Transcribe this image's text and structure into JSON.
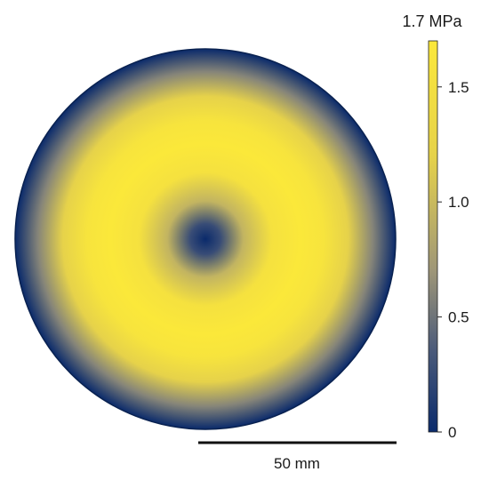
{
  "figure": {
    "quantity_unit_label": "1.7 MPa",
    "colormap": {
      "name": "cividis-like",
      "stops": [
        {
          "value": 0.0,
          "color": "#0a2a6b"
        },
        {
          "value": 0.35,
          "color": "#4a5a7a"
        },
        {
          "value": 0.7,
          "color": "#9e9678"
        },
        {
          "value": 1.2,
          "color": "#e6d24a"
        },
        {
          "value": 1.7,
          "color": "#fbe83a"
        }
      ]
    },
    "colorbar": {
      "min": 0,
      "max": 1.7,
      "ticks": [
        {
          "value": 0,
          "label": "0"
        },
        {
          "value": 0.5,
          "label": "0.5"
        },
        {
          "value": 1.0,
          "label": "1.0"
        },
        {
          "value": 1.5,
          "label": "1.5"
        }
      ]
    },
    "radial_profile": {
      "description_values": [
        {
          "r": 0.0,
          "v": 0.0
        },
        {
          "r": 0.08,
          "v": 0.25
        },
        {
          "r": 0.2,
          "v": 0.95
        },
        {
          "r": 0.35,
          "v": 1.55
        },
        {
          "r": 0.5,
          "v": 1.7
        },
        {
          "r": 0.62,
          "v": 1.6
        },
        {
          "r": 0.75,
          "v": 1.2
        },
        {
          "r": 0.88,
          "v": 0.6
        },
        {
          "r": 1.0,
          "v": 0.0
        }
      ]
    },
    "scale_bar": {
      "label": "50 mm"
    },
    "colors": {
      "outline": "#0a2250",
      "low": "#0a2a6b",
      "high": "#fbe83a"
    }
  }
}
